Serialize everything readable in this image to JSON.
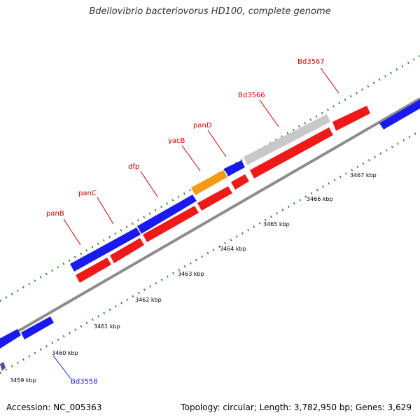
{
  "title": "Bdellovibrio bacteriovorus HD100, complete genome",
  "accession": "Accession: NC_005363",
  "summary": "Topology: circular; Length: 3,782,950 bp; Genes: 3,629",
  "colors": {
    "forward_gene": "#1a1aee",
    "reverse_gene": "#ee1a1a",
    "highlight_gene": "#f39b14",
    "other_gene": "#c8c8c8",
    "backbone": "#8c8c8c",
    "tick": "#1b7a1b",
    "label_forward": "#1a1aee",
    "label_reverse": "#cc0000"
  },
  "kbp_labels": [
    "3459 kbp",
    "3460 kbp",
    "3461 kbp",
    "3462 kbp",
    "3463 kbp",
    "3464 kbp",
    "3465 kbp",
    "3466 kbp",
    "3467 kbp"
  ],
  "gene_labels": [
    {
      "name": "panB",
      "strand": "reverse"
    },
    {
      "name": "panC",
      "strand": "reverse"
    },
    {
      "name": "dfp",
      "strand": "reverse"
    },
    {
      "name": "yacB",
      "strand": "reverse"
    },
    {
      "name": "panD",
      "strand": "reverse"
    },
    {
      "name": "Bd3566",
      "strand": "reverse"
    },
    {
      "name": "Bd3567",
      "strand": "reverse"
    },
    {
      "name": "Bd3558",
      "strand": "forward"
    }
  ]
}
